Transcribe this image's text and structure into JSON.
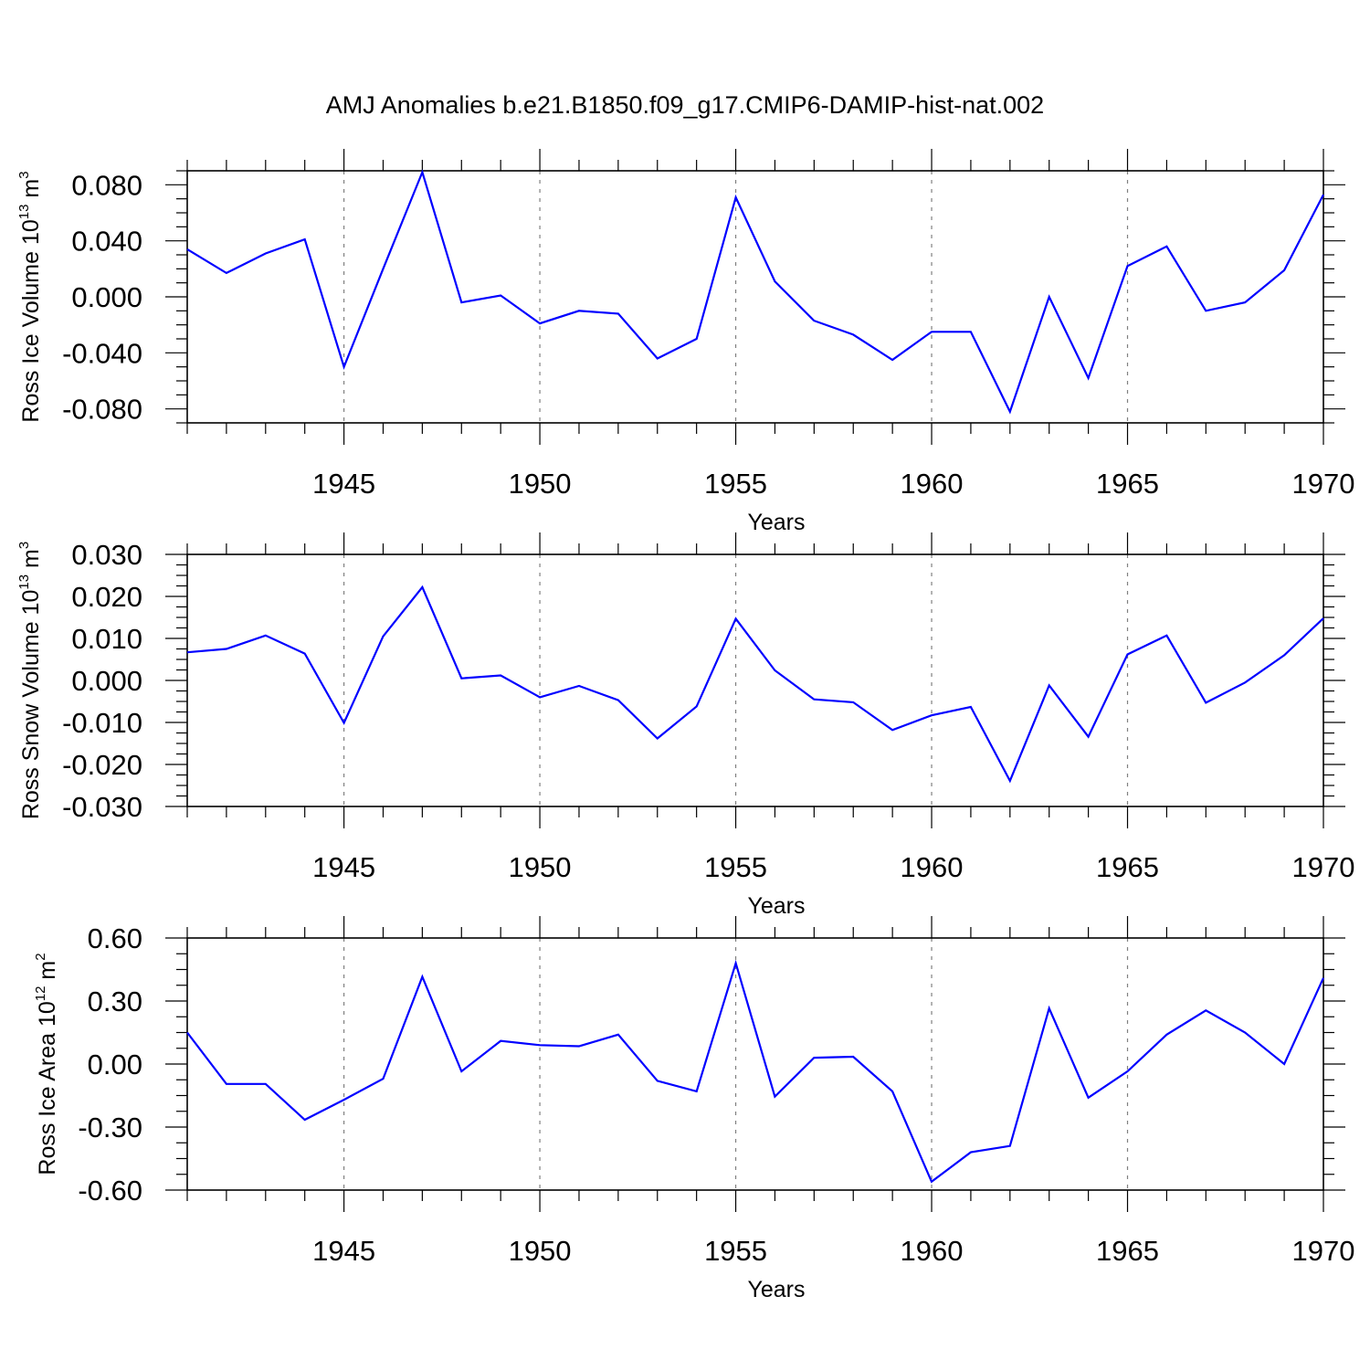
{
  "title": "AMJ Anomalies b.e21.B1850.f09_g17.CMIP6-DAMIP-hist-nat.002",
  "colors": {
    "line": "#0000ff",
    "axis": "#000000",
    "grid": "#808080"
  },
  "chart_data": [
    {
      "type": "line",
      "ylabel": {
        "base": "Ross Ice Volume 10",
        "exp": "13",
        "unit": " m",
        "unit_exp": "3"
      },
      "xlabel": "Years",
      "xlim": [
        1941,
        1970
      ],
      "ylim": [
        -0.09,
        0.09
      ],
      "xticks": [
        1945,
        1950,
        1955,
        1960,
        1965,
        1970
      ],
      "xtick_labels": [
        "1945",
        "1950",
        "1955",
        "1960",
        "1965",
        "1970"
      ],
      "yticks": [
        -0.08,
        -0.04,
        0.0,
        0.04,
        0.08
      ],
      "ytick_labels": [
        "-0.080",
        "-0.040",
        "0.000",
        "0.040",
        "0.080"
      ],
      "yminor_step": 0.01,
      "grid": "vertical dashed at major x ticks",
      "x": [
        1941,
        1942,
        1943,
        1944,
        1945,
        1946,
        1947,
        1948,
        1949,
        1950,
        1951,
        1952,
        1953,
        1954,
        1955,
        1956,
        1957,
        1958,
        1959,
        1960,
        1961,
        1962,
        1963,
        1964,
        1965,
        1966,
        1967,
        1968,
        1969,
        1970
      ],
      "values": [
        0.034,
        0.017,
        0.031,
        0.041,
        -0.05,
        0.02,
        0.089,
        -0.004,
        0.001,
        -0.019,
        -0.01,
        -0.012,
        -0.044,
        -0.03,
        0.071,
        0.011,
        -0.017,
        -0.027,
        -0.045,
        -0.025,
        -0.025,
        -0.082,
        0.0,
        -0.058,
        0.022,
        0.036,
        -0.01,
        -0.004,
        0.019,
        0.073
      ]
    },
    {
      "type": "line",
      "ylabel": {
        "base": "Ross Snow Volume 10",
        "exp": "13",
        "unit": " m",
        "unit_exp": "3"
      },
      "xlabel": "Years",
      "xlim": [
        1941,
        1970
      ],
      "ylim": [
        -0.03,
        0.03
      ],
      "xticks": [
        1945,
        1950,
        1955,
        1960,
        1965,
        1970
      ],
      "xtick_labels": [
        "1945",
        "1950",
        "1955",
        "1960",
        "1965",
        "1970"
      ],
      "yticks": [
        -0.03,
        -0.02,
        -0.01,
        0.0,
        0.01,
        0.02,
        0.03
      ],
      "ytick_labels": [
        "-0.030",
        "-0.020",
        "-0.010",
        "0.000",
        "0.010",
        "0.020",
        "0.030"
      ],
      "yminor_step": 0.0025,
      "grid": "vertical dashed at major x ticks",
      "x": [
        1941,
        1942,
        1943,
        1944,
        1945,
        1946,
        1947,
        1948,
        1949,
        1950,
        1951,
        1952,
        1953,
        1954,
        1955,
        1956,
        1957,
        1958,
        1959,
        1960,
        1961,
        1962,
        1963,
        1964,
        1965,
        1966,
        1967,
        1968,
        1969,
        1970
      ],
      "values": [
        0.0067,
        0.0075,
        0.0107,
        0.0064,
        -0.0101,
        0.0105,
        0.0222,
        0.0005,
        0.0012,
        -0.004,
        -0.0013,
        -0.0047,
        -0.0138,
        -0.0062,
        0.0147,
        0.0024,
        -0.0045,
        -0.0052,
        -0.0118,
        -0.0083,
        -0.0063,
        -0.0239,
        -0.0012,
        -0.0134,
        0.0062,
        0.0107,
        -0.0053,
        -0.0005,
        0.006,
        0.0148
      ]
    },
    {
      "type": "line",
      "ylabel": {
        "base": "Ross Ice Area 10",
        "exp": "12",
        "unit": " m",
        "unit_exp": "2"
      },
      "xlabel": "Years",
      "xlim": [
        1941,
        1970
      ],
      "ylim": [
        -0.6,
        0.6
      ],
      "xticks": [
        1945,
        1950,
        1955,
        1960,
        1965,
        1970
      ],
      "xtick_labels": [
        "1945",
        "1950",
        "1955",
        "1960",
        "1965",
        "1970"
      ],
      "yticks": [
        -0.6,
        -0.3,
        0.0,
        0.3,
        0.6
      ],
      "ytick_labels": [
        "-0.60",
        "-0.30",
        "0.00",
        "0.30",
        "0.60"
      ],
      "yminor_step": 0.075,
      "grid": "vertical dashed at major x ticks",
      "x": [
        1941,
        1942,
        1943,
        1944,
        1945,
        1946,
        1947,
        1948,
        1949,
        1950,
        1951,
        1952,
        1953,
        1954,
        1955,
        1956,
        1957,
        1958,
        1959,
        1960,
        1961,
        1962,
        1963,
        1964,
        1965,
        1966,
        1967,
        1968,
        1969,
        1970
      ],
      "values": [
        0.15,
        -0.095,
        -0.095,
        -0.265,
        -0.17,
        -0.07,
        0.415,
        -0.035,
        0.11,
        0.09,
        0.085,
        0.14,
        -0.08,
        -0.13,
        0.48,
        -0.155,
        0.03,
        0.035,
        -0.13,
        -0.56,
        -0.42,
        -0.39,
        0.265,
        -0.16,
        -0.035,
        0.14,
        0.255,
        0.15,
        0.0,
        0.41
      ]
    }
  ]
}
